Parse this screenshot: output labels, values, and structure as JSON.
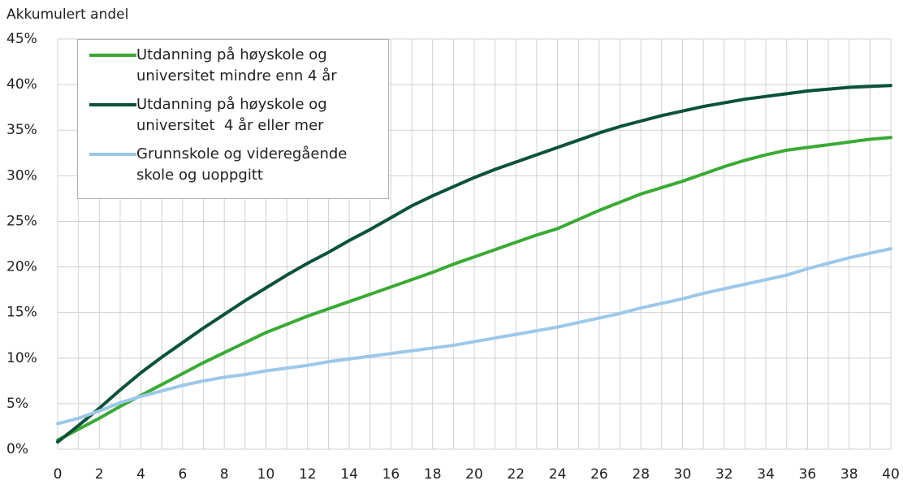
{
  "chart_data": {
    "type": "line",
    "y_axis_label": "Akkumulert andel",
    "x": [
      0,
      1,
      2,
      3,
      4,
      5,
      6,
      7,
      8,
      9,
      10,
      11,
      12,
      13,
      14,
      15,
      16,
      17,
      18,
      19,
      20,
      21,
      22,
      23,
      24,
      25,
      26,
      27,
      28,
      29,
      30,
      31,
      32,
      33,
      34,
      35,
      36,
      37,
      38,
      39,
      40
    ],
    "xlim": [
      0,
      40
    ],
    "xticks": [
      0,
      2,
      4,
      6,
      8,
      10,
      12,
      14,
      16,
      18,
      20,
      22,
      24,
      26,
      28,
      30,
      32,
      34,
      36,
      38,
      40
    ],
    "ylim": [
      0,
      45
    ],
    "yticks": [
      {
        "value": 0,
        "label": "0%"
      },
      {
        "value": 5,
        "label": "5%"
      },
      {
        "value": 10,
        "label": "10%"
      },
      {
        "value": 15,
        "label": "15%"
      },
      {
        "value": 20,
        "label": "20%"
      },
      {
        "value": 25,
        "label": "25%"
      },
      {
        "value": 30,
        "label": "30%"
      },
      {
        "value": 35,
        "label": "35%"
      },
      {
        "value": 40,
        "label": "40%"
      },
      {
        "value": 45,
        "label": "45%"
      }
    ],
    "grid": true,
    "legend": "upper left",
    "series": [
      {
        "name": "Utdanning på høyskole og universitet mindre enn 4 år",
        "color": "#3aaa35",
        "values": [
          1.0,
          2.2,
          3.4,
          4.7,
          5.9,
          7.1,
          8.3,
          9.5,
          10.6,
          11.7,
          12.8,
          13.7,
          14.6,
          15.4,
          16.2,
          17.0,
          17.8,
          18.6,
          19.4,
          20.3,
          21.1,
          21.9,
          22.7,
          23.5,
          24.2,
          25.2,
          26.2,
          27.1,
          28.0,
          28.7,
          29.4,
          30.2,
          31.0,
          31.7,
          32.3,
          32.8,
          33.1,
          33.4,
          33.7,
          34.0,
          34.2
        ]
      },
      {
        "name": "Utdanning på høyskole og universitet  4 år eller mer",
        "color": "#0a5239",
        "values": [
          0.8,
          2.6,
          4.5,
          6.5,
          8.4,
          10.1,
          11.7,
          13.3,
          14.8,
          16.3,
          17.7,
          19.1,
          20.4,
          21.6,
          22.9,
          24.1,
          25.4,
          26.7,
          27.8,
          28.8,
          29.8,
          30.7,
          31.5,
          32.3,
          33.1,
          33.9,
          34.7,
          35.4,
          36.0,
          36.6,
          37.1,
          37.6,
          38.0,
          38.4,
          38.7,
          39.0,
          39.3,
          39.5,
          39.7,
          39.8,
          39.9
        ]
      },
      {
        "name": "Grunnskole og videregående skole og uoppgitt",
        "color": "#9cc8ea",
        "values": [
          2.8,
          3.4,
          4.2,
          5.1,
          5.8,
          6.4,
          7.0,
          7.5,
          7.9,
          8.2,
          8.6,
          8.9,
          9.2,
          9.6,
          9.9,
          10.2,
          10.5,
          10.8,
          11.1,
          11.4,
          11.8,
          12.2,
          12.6,
          13.0,
          13.4,
          13.9,
          14.4,
          14.9,
          15.5,
          16.0,
          16.5,
          17.1,
          17.6,
          18.1,
          18.6,
          19.1,
          19.8,
          20.4,
          21.0,
          21.5,
          22.0
        ]
      }
    ]
  }
}
